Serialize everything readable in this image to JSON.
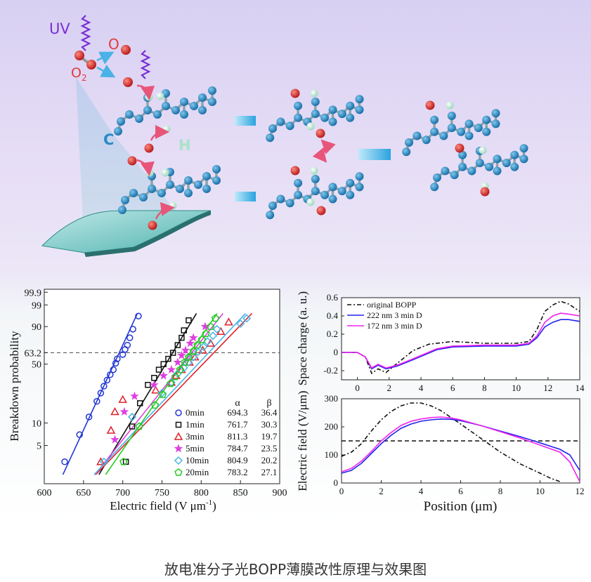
{
  "caption": "放电准分子光BOPP薄膜改性原理与效果图",
  "schematic": {
    "labels": {
      "uv": "UV",
      "o": "O",
      "o2": "O",
      "o2_sub": "2",
      "c": "C",
      "h": "H"
    },
    "colors": {
      "carbon": "#2a8cc4",
      "oxygen": "#d63a3a",
      "hydrogen": "#c6ead9",
      "uv": "#7a2fd6",
      "arrow": "#5ab8e6"
    }
  },
  "chart_data": [
    {
      "type": "scatter",
      "title": "",
      "xlabel": "Electric field (V μm",
      "xlabel_sup": "-1",
      "xlabel_end": ")",
      "ylabel": "Breakdown probability",
      "xlim": [
        600,
        900
      ],
      "xticks": [
        600,
        650,
        700,
        750,
        800,
        850,
        900
      ],
      "yticks": [
        "5",
        "10",
        "50",
        "63.2",
        "90",
        "99",
        "99.9"
      ],
      "reference_line": "63.2",
      "legend": {
        "alpha_header": "α",
        "beta_header": "β"
      },
      "series": [
        {
          "name": "0min",
          "alpha": "694.3",
          "beta": "36.4",
          "color": "#2236d6",
          "marker": "circle",
          "x": [
            626,
            645,
            657,
            667,
            672,
            676,
            680,
            684,
            688,
            691,
            693,
            700,
            703,
            706,
            709,
            713,
            720
          ],
          "y": [
            0.03,
            0.07,
            0.12,
            0.19,
            0.24,
            0.29,
            0.34,
            0.39,
            0.44,
            0.51,
            0.56,
            0.61,
            0.67,
            0.72,
            0.8,
            0.88,
            0.96
          ]
        },
        {
          "name": "1min",
          "alpha": "761.7",
          "beta": "30.3",
          "color": "#111111",
          "marker": "square",
          "x": [
            704,
            712,
            722,
            732,
            740,
            746,
            752,
            758,
            764,
            770,
            775,
            778,
            784
          ],
          "y": [
            0.03,
            0.09,
            0.18,
            0.3,
            0.36,
            0.44,
            0.5,
            0.56,
            0.63,
            0.72,
            0.8,
            0.87,
            0.94
          ]
        },
        {
          "name": "3min",
          "alpha": "811.3",
          "beta": "19.7",
          "color": "#e0202a",
          "marker": "triangle",
          "x": [
            672,
            685,
            690,
            700,
            742,
            762,
            768,
            775,
            785,
            792,
            802,
            812,
            825,
            835
          ],
          "y": [
            0.03,
            0.08,
            0.14,
            0.2,
            0.26,
            0.32,
            0.38,
            0.44,
            0.52,
            0.58,
            0.66,
            0.74,
            0.86,
            0.93
          ]
        },
        {
          "name": "5min",
          "alpha": "784.7",
          "beta": "23.5",
          "color": "#e040e0",
          "marker": "star",
          "x": [
            690,
            702,
            715,
            740,
            752,
            762,
            770,
            775,
            780,
            786,
            790,
            805
          ],
          "y": [
            0.06,
            0.14,
            0.22,
            0.3,
            0.38,
            0.44,
            0.52,
            0.6,
            0.66,
            0.74,
            0.8,
            0.9
          ]
        },
        {
          "name": "10min",
          "alpha": "804.9",
          "beta": "20.2",
          "color": "#49b4e6",
          "marker": "diamond",
          "x": [
            676,
            712,
            750,
            762,
            770,
            778,
            784,
            790,
            796,
            803,
            808,
            815,
            820,
            850,
            858
          ],
          "y": [
            0.03,
            0.12,
            0.24,
            0.32,
            0.4,
            0.46,
            0.52,
            0.58,
            0.64,
            0.7,
            0.76,
            0.82,
            0.88,
            0.92,
            0.95
          ]
        },
        {
          "name": "20min",
          "alpha": "783.2",
          "beta": "27.1",
          "color": "#22cc22",
          "marker": "pentagon",
          "x": [
            701,
            721,
            741,
            751,
            761,
            767,
            773,
            779,
            784,
            790,
            795,
            801,
            806,
            812,
            818
          ],
          "y": [
            0.03,
            0.09,
            0.17,
            0.23,
            0.31,
            0.37,
            0.44,
            0.52,
            0.58,
            0.65,
            0.72,
            0.78,
            0.84,
            0.9,
            0.95
          ]
        }
      ]
    },
    {
      "type": "line",
      "xlabel": "",
      "ylabel": "Space charge (a. u.)",
      "xlim": [
        -1,
        14
      ],
      "ylim": [
        -0.3,
        0.6
      ],
      "xticks": [
        0,
        2,
        4,
        6,
        8,
        10,
        12,
        14
      ],
      "yticks": [
        -0.2,
        0,
        0.2,
        0.4,
        0.6
      ],
      "legend_position": "top-left",
      "series": [
        {
          "name": "original BOPP",
          "color": "#111111",
          "dash": "dashdot",
          "x": [
            -1,
            0,
            0.5,
            0.9,
            1.3,
            1.8,
            2.5,
            3.5,
            4.5,
            6,
            8,
            10,
            10.8,
            11.3,
            11.8,
            12.3,
            12.8,
            13.3,
            14
          ],
          "y": [
            0,
            0,
            -0.05,
            -0.23,
            -0.18,
            -0.22,
            -0.12,
            0.02,
            0.09,
            0.12,
            0.1,
            0.1,
            0.12,
            0.25,
            0.45,
            0.52,
            0.56,
            0.53,
            0.45
          ]
        },
        {
          "name": "222 nm 3 min D",
          "color": "#2222ee",
          "dash": "solid",
          "x": [
            -1,
            0,
            0.5,
            0.9,
            1.3,
            1.8,
            2.5,
            3.5,
            5,
            6,
            8,
            10,
            10.8,
            11.3,
            11.8,
            12.3,
            12.8,
            13.3,
            14
          ],
          "y": [
            0,
            0,
            -0.05,
            -0.18,
            -0.14,
            -0.18,
            -0.15,
            -0.08,
            0.03,
            0.06,
            0.07,
            0.07,
            0.09,
            0.16,
            0.28,
            0.33,
            0.36,
            0.36,
            0.34
          ]
        },
        {
          "name": "172 nm 3 min D",
          "color": "#ee22ee",
          "dash": "solid",
          "x": [
            -1,
            0,
            0.5,
            0.9,
            1.3,
            1.8,
            2.5,
            3.5,
            5,
            6,
            8,
            10,
            10.8,
            11.3,
            11.8,
            12.3,
            12.8,
            13.3,
            14
          ],
          "y": [
            0,
            0,
            -0.05,
            -0.17,
            -0.13,
            -0.17,
            -0.14,
            -0.07,
            0.04,
            0.07,
            0.08,
            0.08,
            0.1,
            0.18,
            0.33,
            0.4,
            0.43,
            0.42,
            0.4
          ]
        }
      ]
    },
    {
      "type": "line",
      "xlabel": "Position (μm)",
      "ylabel": "Electric field (V/μm)",
      "xlim": [
        0,
        12
      ],
      "ylim": [
        0,
        300
      ],
      "xticks": [
        0,
        2,
        4,
        6,
        8,
        10,
        12
      ],
      "yticks": [
        0,
        100,
        200,
        300
      ],
      "reference_line": 150,
      "series": [
        {
          "name": "original BOPP",
          "color": "#111111",
          "dash": "dashdot",
          "x": [
            0,
            0.5,
            1,
            1.5,
            2,
            2.5,
            3,
            3.5,
            4,
            4.5,
            5,
            6,
            7,
            8,
            9,
            10,
            10.5,
            11
          ],
          "y": [
            95,
            110,
            140,
            185,
            225,
            255,
            275,
            285,
            285,
            275,
            258,
            210,
            160,
            110,
            68,
            35,
            18,
            5
          ]
        },
        {
          "name": "222 nm 3 min D",
          "color": "#2222ee",
          "dash": "solid",
          "x": [
            0,
            0.5,
            1,
            1.5,
            2,
            2.5,
            3,
            3.5,
            4,
            4.5,
            5,
            5.5,
            6,
            7,
            8,
            9,
            10,
            11,
            11.5,
            12
          ],
          "y": [
            35,
            45,
            70,
            105,
            140,
            170,
            195,
            210,
            220,
            225,
            228,
            227,
            222,
            205,
            185,
            165,
            143,
            120,
            100,
            45
          ]
        },
        {
          "name": "172 nm 3 min D",
          "color": "#ee22ee",
          "dash": "solid",
          "x": [
            0,
            0.5,
            1,
            1.5,
            2,
            2.5,
            3,
            3.5,
            4,
            4.5,
            5,
            5.5,
            6,
            7,
            8,
            9,
            10,
            11,
            11.5,
            12
          ],
          "y": [
            40,
            52,
            78,
            112,
            150,
            180,
            205,
            220,
            228,
            233,
            235,
            232,
            225,
            205,
            183,
            160,
            135,
            110,
            75,
            5
          ]
        }
      ]
    }
  ]
}
